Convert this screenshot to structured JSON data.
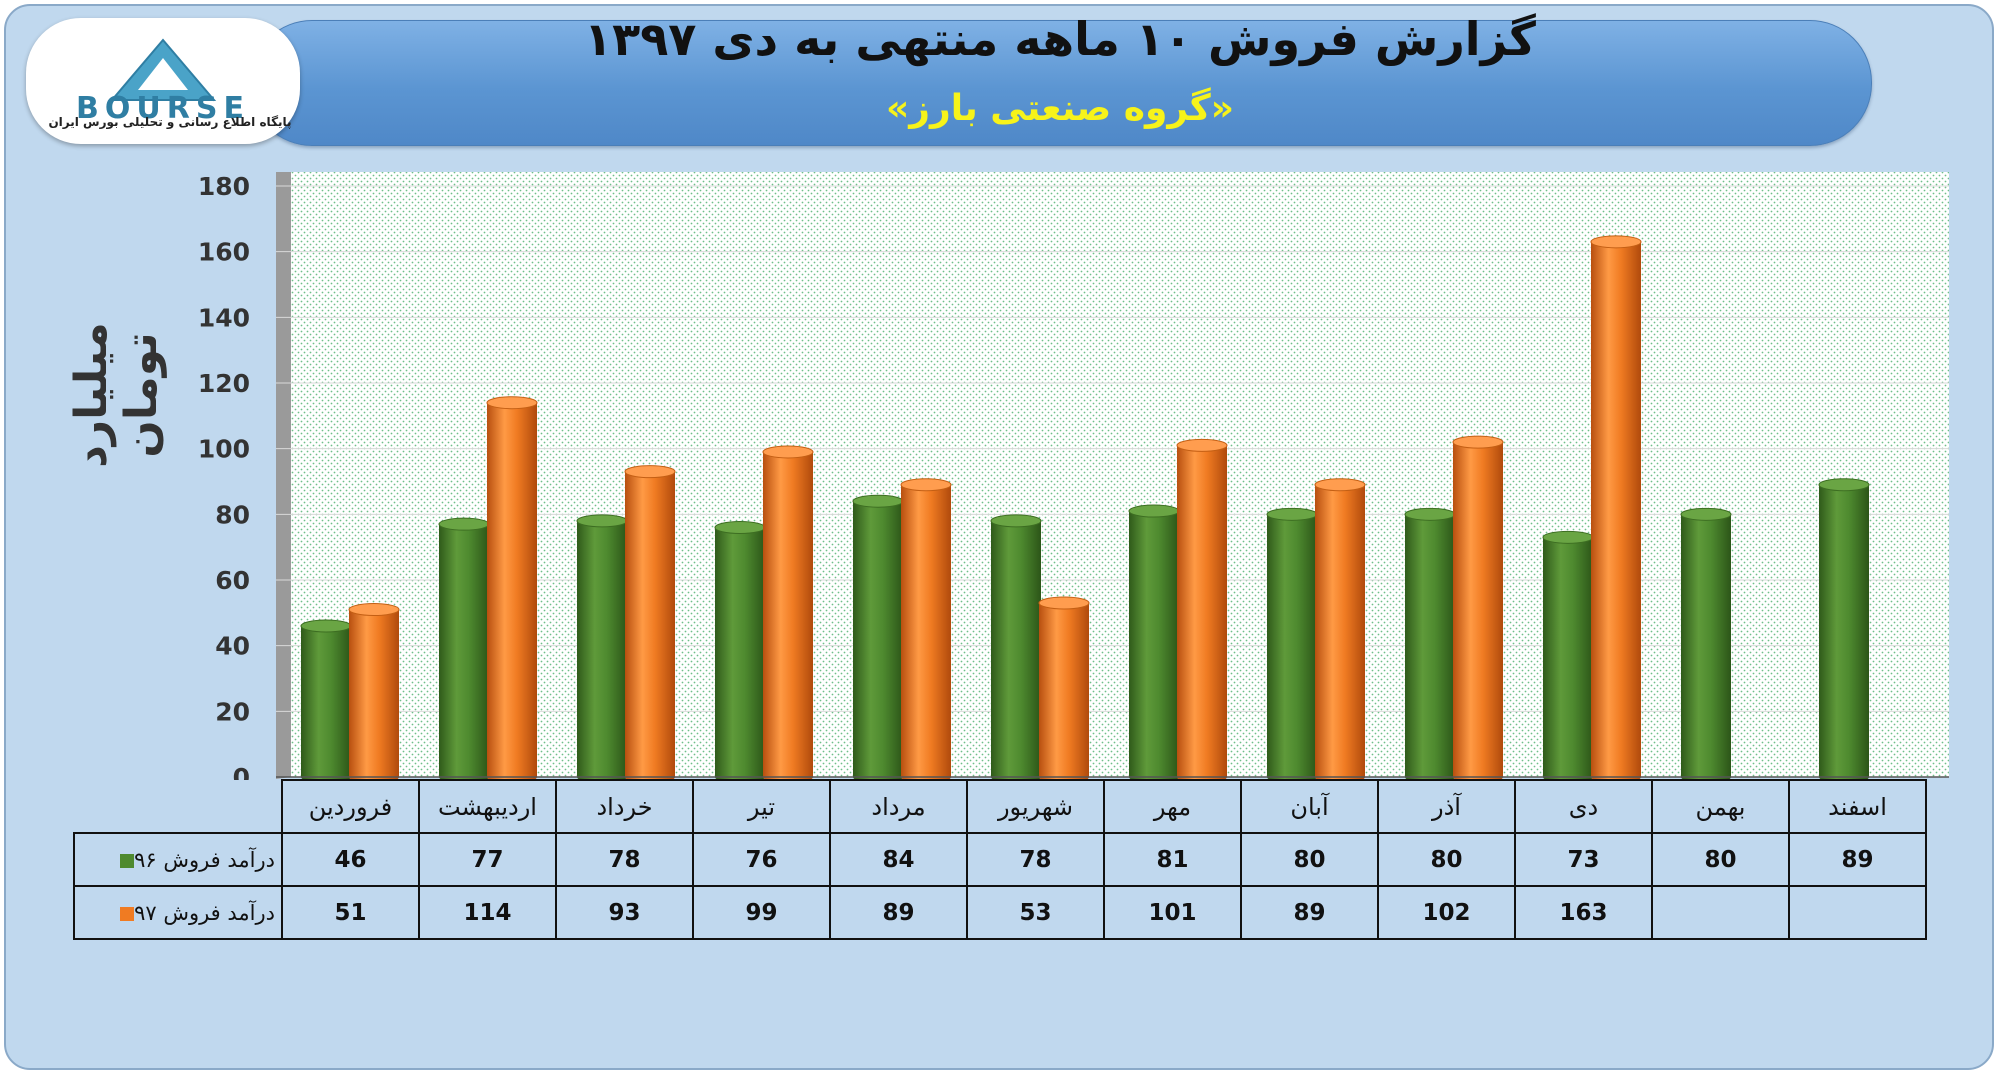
{
  "header": {
    "title": "گزارش فروش ۱۰ ماهه منتهی به دی ۱۳۹۷",
    "subtitle": "«گروه صنعتی بارز»"
  },
  "logo": {
    "brand": "BOURSE",
    "tagline": "پایگاه اطلاع رسانی و تحلیلی بورس ایران"
  },
  "chart_data": {
    "type": "bar",
    "ylabel": "میلیارد تومان",
    "ylim": [
      0,
      180
    ],
    "yticks": [
      0,
      20,
      40,
      60,
      80,
      100,
      120,
      140,
      160,
      180
    ],
    "categories": [
      "فروردین",
      "اردیبهشت",
      "خرداد",
      "تیر",
      "مرداد",
      "شهریور",
      "مهر",
      "آبان",
      "آذر",
      "دی",
      "بهمن",
      "اسفند"
    ],
    "series": [
      {
        "name": "درآمد فروش ۹۶",
        "color": "#4e8a2f",
        "values": [
          46,
          77,
          78,
          76,
          84,
          78,
          81,
          80,
          80,
          73,
          80,
          89
        ]
      },
      {
        "name": "درآمد فروش ۹۷",
        "color": "#f07b22",
        "values": [
          51,
          114,
          93,
          99,
          89,
          53,
          101,
          89,
          102,
          163,
          null,
          null
        ]
      }
    ],
    "grid": true,
    "legend": "data-table-bottom"
  }
}
